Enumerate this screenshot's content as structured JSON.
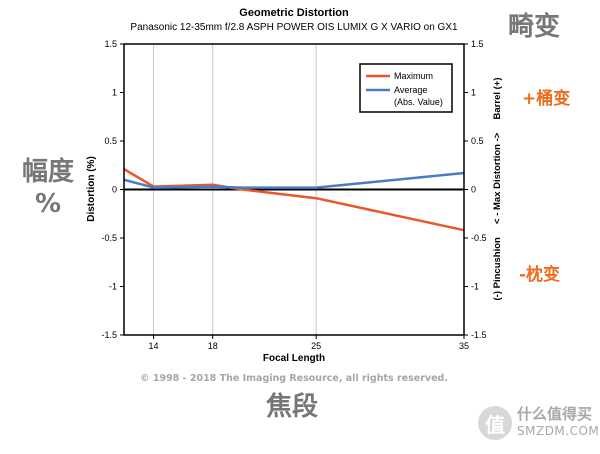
{
  "chart_data": {
    "type": "line",
    "title": "Geometric Distortion",
    "subtitle": "Panasonic 12-35mm f/2.8 ASPH POWER OIS LUMIX G X VARIO on GX1",
    "xlabel": "Focal Length",
    "ylabel": "Distortion (%)",
    "right_axis_label": "(-) Pincushion     < - Max Distortion ->     Barrel (+)",
    "x_tick_labels": [
      "14",
      "18",
      "25",
      "35"
    ],
    "y_ticks": [
      1.5,
      1,
      0.5,
      0,
      -0.5,
      -1,
      -1.5
    ],
    "y_tick_labels": [
      "1.5",
      "1",
      "0.5",
      "0",
      "-0.5",
      "-1",
      "-1.5"
    ],
    "x_positions": [
      12,
      14,
      18,
      20,
      25,
      35
    ],
    "xlim": [
      12,
      35
    ],
    "ylim": [
      -1.5,
      1.5
    ],
    "grid": "vertical",
    "legend_position": "top-right",
    "series": [
      {
        "name": "Maximum",
        "color": "#e8582a",
        "x": [
          12,
          14,
          18,
          20,
          25,
          35
        ],
        "values": [
          0.21,
          0.03,
          0.05,
          0.0,
          -0.09,
          -0.42
        ]
      },
      {
        "name": "Average",
        "name_line2": "(Abs. Value)",
        "color": "#4a7bc8",
        "x": [
          12,
          14,
          18,
          20,
          25,
          35
        ],
        "values": [
          0.1,
          0.02,
          0.03,
          0.02,
          0.02,
          0.17
        ]
      }
    ],
    "copyright": "© 1998 - 2018 The Imaging Resource, all rights reserved."
  },
  "annotations": {
    "distortion": "畸变",
    "barrel": "+桶变",
    "pincushion": "-枕变",
    "amplitude_line1": "幅度",
    "amplitude_line2": "%",
    "focal_length": "焦段"
  },
  "watermark": {
    "badge": "值",
    "name": "什么值得买",
    "site": "SMZDM.COM"
  }
}
